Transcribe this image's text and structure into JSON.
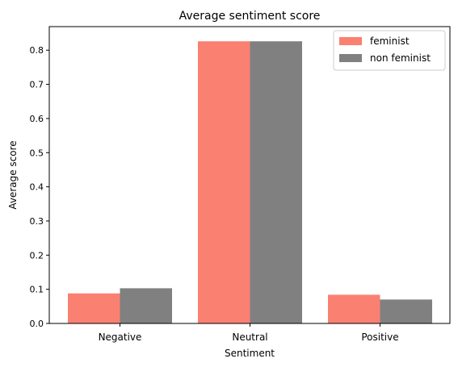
{
  "chart_data": {
    "type": "bar",
    "title": "Average sentiment score",
    "xlabel": "Sentiment",
    "ylabel": "Average score",
    "categories": [
      "Negative",
      "Neutral",
      "Positive"
    ],
    "series": [
      {
        "name": "feminist",
        "values": [
          0.088,
          0.826,
          0.084
        ],
        "color": "#fa8072"
      },
      {
        "name": "non feminist",
        "values": [
          0.103,
          0.826,
          0.07
        ],
        "color": "#808080"
      }
    ],
    "ylim": [
      0,
      0.869
    ],
    "yticks": [
      0.0,
      0.1,
      0.2,
      0.3,
      0.4,
      0.5,
      0.6,
      0.7,
      0.8
    ],
    "ytick_labels": [
      "0.0",
      "0.1",
      "0.2",
      "0.3",
      "0.4",
      "0.5",
      "0.6",
      "0.7",
      "0.8"
    ],
    "grid": false,
    "legend_position": "top-right"
  }
}
